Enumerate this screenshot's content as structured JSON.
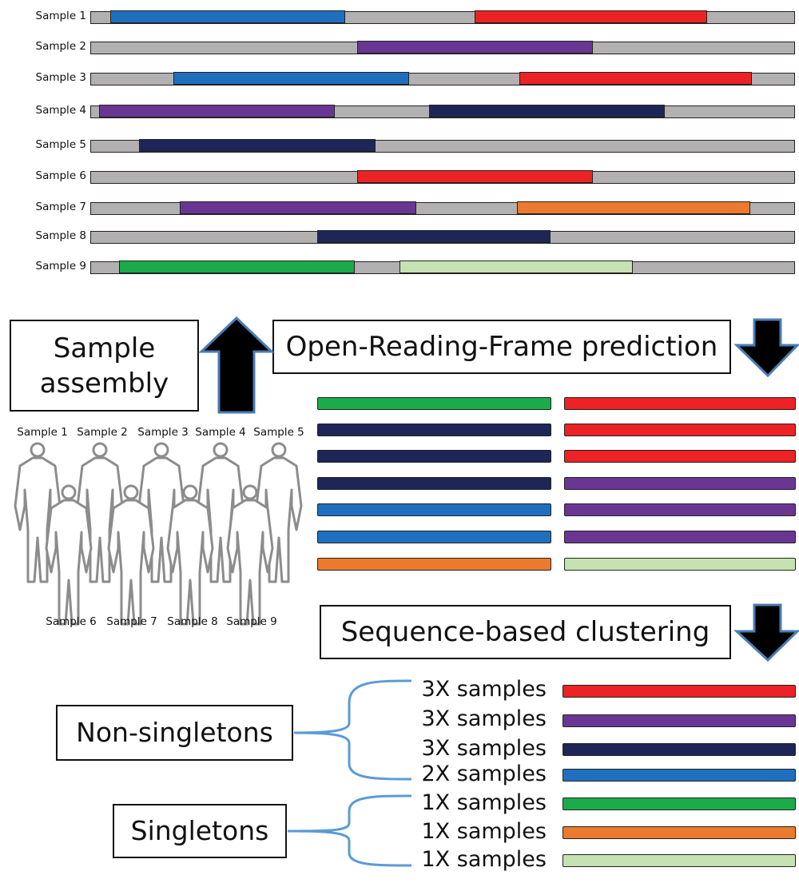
{
  "colors": {
    "contig_gray": "#b2b0b0",
    "blue": "#1f6fbf",
    "red": "#ec2224",
    "purple": "#6a3694",
    "navy": "#1e2658",
    "orange": "#ec7a2e",
    "green": "#1bab4b",
    "light_green": "#c6e2b3",
    "arrow_black": "#000000",
    "arrow_outline": "#4a7db5",
    "brace_blue": "#5b9bd5",
    "figure_gray": "#8c8c8c"
  },
  "assemblies": [
    {
      "label": "Sample 1",
      "segments": [
        {
          "color": "blue"
        },
        {
          "color": "red"
        }
      ]
    },
    {
      "label": "Sample 2",
      "segments": [
        {
          "color": "purple"
        }
      ]
    },
    {
      "label": "Sample 3",
      "segments": [
        {
          "color": "blue"
        },
        {
          "color": "red"
        }
      ]
    },
    {
      "label": "Sample 4",
      "segments": [
        {
          "color": "purple"
        },
        {
          "color": "navy"
        }
      ]
    },
    {
      "label": "Sample 5",
      "segments": [
        {
          "color": "navy"
        }
      ]
    },
    {
      "label": "Sample 6",
      "segments": [
        {
          "color": "red"
        }
      ]
    },
    {
      "label": "Sample 7",
      "segments": [
        {
          "color": "purple"
        },
        {
          "color": "orange"
        }
      ]
    },
    {
      "label": "Sample 8",
      "segments": [
        {
          "color": "navy"
        }
      ]
    },
    {
      "label": "Sample 9",
      "segments": [
        {
          "color": "green"
        },
        {
          "color": "light_green"
        }
      ]
    }
  ],
  "steps": {
    "sample_assembly": "Sample assembly",
    "orf_prediction": "Open-Reading-Frame prediction",
    "clustering": "Sequence-based clustering"
  },
  "people": {
    "top_labels": [
      "Sample 1",
      "Sample 2",
      "Sample 3",
      "Sample 4",
      "Sample 5"
    ],
    "bottom_labels": [
      "Sample 6",
      "Sample 7",
      "Sample 8",
      "Sample 9"
    ]
  },
  "orfs": {
    "left": [
      "green",
      "navy",
      "navy",
      "navy",
      "blue",
      "blue",
      "orange"
    ],
    "right": [
      "red",
      "red",
      "red",
      "purple",
      "purple",
      "purple",
      "light_green"
    ]
  },
  "clusters": {
    "non_singletons_label": "Non-singletons",
    "singletons_label": "Singletons",
    "rows": [
      {
        "label": "3X samples",
        "color": "red"
      },
      {
        "label": "3X samples",
        "color": "purple"
      },
      {
        "label": "3X samples",
        "color": "navy"
      },
      {
        "label": "2X samples",
        "color": "blue"
      },
      {
        "label": "1X samples",
        "color": "green"
      },
      {
        "label": "1X samples",
        "color": "orange"
      },
      {
        "label": "1X samples",
        "color": "light_green"
      }
    ]
  }
}
